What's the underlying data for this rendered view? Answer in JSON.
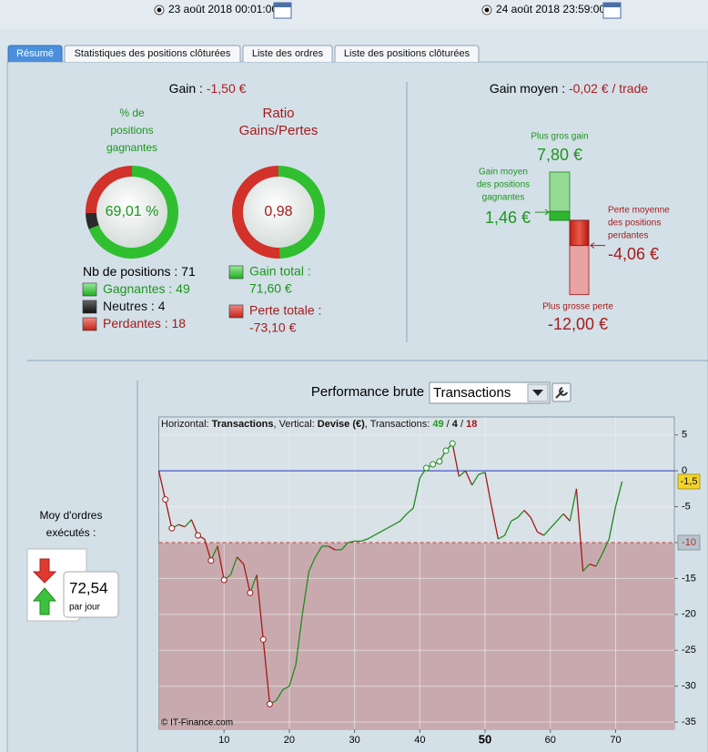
{
  "date_range": {
    "start": "23 août 2018 00:01:00",
    "end": "24 août 2018 23:59:00"
  },
  "tabs": [
    "Résumé",
    "Statistiques des positions clôturées",
    "Liste des ordres",
    "Liste des positions clôturées"
  ],
  "summary": {
    "gain_label": "Gain : ",
    "gain": {
      "value": -1.5,
      "label": "-1,50 €"
    },
    "win_rate": {
      "title": [
        "% de",
        "positions",
        "gagnantes"
      ],
      "value": 69.01,
      "label": "69,01 %"
    },
    "ratio": {
      "title": [
        "Ratio",
        "Gains/Pertes"
      ],
      "value": 0.98,
      "label": "0,98"
    },
    "positions": {
      "label": "Nb de positions : ",
      "value": 71
    },
    "gagnantes": {
      "label": "Gagnantes : ",
      "value": 49
    },
    "neutres": {
      "label": "Neutres : ",
      "value": 4
    },
    "perdantes": {
      "label": "Perdantes : ",
      "value": 18
    },
    "gain_total": {
      "label": "Gain total :",
      "value": 71.6,
      "value_label": "71,60 €"
    },
    "perte_totale": {
      "label": "Perte totale :",
      "value": -73.1,
      "value_label": "-73,10 €"
    }
  },
  "average": {
    "label": "Gain moyen : ",
    "value": {
      "value": -0.02,
      "label": "-0,02 € / trade"
    },
    "max_gain": {
      "title": "Plus gros gain",
      "value": 7.8,
      "label": "7,80 €"
    },
    "avg_gain": {
      "title": [
        "Gain moyen",
        "des positions",
        "gagnantes"
      ],
      "value": 1.46,
      "label": "1,46 €"
    },
    "avg_loss": {
      "title": [
        "Perte moyenne",
        "des positions",
        "perdantes"
      ],
      "value": -4.06,
      "label": "-4,06 €"
    },
    "max_loss": {
      "title": "Plus grosse perte",
      "value": -12,
      "label": "-12,00 €"
    }
  },
  "orders": {
    "title": [
      "Moy d'ordres",
      "exécutés :"
    ],
    "value": "72,54",
    "unit": "par jour"
  },
  "chart_data": {
    "type": "line",
    "title": "Performance brute",
    "selector": "Transactions",
    "header": [
      {
        "text": "Horizontal: "
      },
      {
        "text": "Transactions",
        "bold": true
      },
      {
        "text": ", Vertical: "
      },
      {
        "text": "Devise (€)",
        "bold": true
      },
      {
        "text": ", Transactions: "
      },
      {
        "text": "49",
        "bold": true,
        "color": "#1d9a1d"
      },
      {
        "text": " / "
      },
      {
        "text": "4",
        "bold": true
      },
      {
        "text": " / "
      },
      {
        "text": "18",
        "bold": true,
        "color": "#a51515"
      }
    ],
    "x": [
      0,
      1,
      2,
      3,
      4,
      5,
      6,
      7,
      8,
      9,
      10,
      11,
      12,
      13,
      14,
      15,
      16,
      17,
      18,
      19,
      20,
      21,
      22,
      23,
      24,
      25,
      26,
      27,
      28,
      29,
      30,
      31,
      32,
      33,
      34,
      35,
      36,
      37,
      38,
      39,
      40,
      41,
      42,
      43,
      44,
      45,
      46,
      47,
      48,
      49,
      50,
      51,
      52,
      53,
      54,
      55,
      56,
      57,
      58,
      59,
      60,
      61,
      62,
      63,
      64,
      65,
      66,
      67,
      68,
      69,
      70,
      71
    ],
    "values": [
      0,
      -4,
      -8,
      -7.5,
      -7.8,
      -6.8,
      -9,
      -9.5,
      -12.5,
      -10.5,
      -15.2,
      -14.5,
      -12,
      -13,
      -17,
      -14.5,
      -23.5,
      -32.5,
      -32,
      -30.5,
      -30,
      -27,
      -20,
      -14,
      -12,
      -10.5,
      -10.5,
      -11,
      -11,
      -10,
      -9.8,
      -9.8,
      -9.5,
      -9,
      -8.5,
      -8,
      -7.5,
      -7,
      -6,
      -5.2,
      -1,
      0.4,
      0.9,
      1.3,
      2.8,
      3.8,
      -0.8,
      0,
      -2,
      -0.5,
      -0.2,
      -5,
      -9.5,
      -9,
      -7,
      -6.5,
      -5.5,
      -6.5,
      -8.5,
      -9,
      -8,
      -7,
      -6,
      -7,
      -2.5,
      -14,
      -13,
      -13.3,
      -11.5,
      -9.5,
      -5,
      -1.5
    ],
    "marker_indices": [
      1,
      2,
      6,
      8,
      10,
      14,
      16,
      17,
      41,
      42,
      43,
      44,
      45
    ],
    "rise_color": "#1e8c1e",
    "fall_color": "#a31818",
    "xlim": [
      0,
      79
    ],
    "xticks": [
      10,
      20,
      30,
      40,
      50,
      60,
      70
    ],
    "bold_xtick": 50,
    "ylim": [
      -36,
      7.5
    ],
    "yticks": [
      5,
      0,
      -5,
      -10,
      -15,
      -20,
      -25,
      -30,
      -35
    ],
    "current_value": {
      "value": -1.5,
      "label": "-1,5"
    },
    "threshold": {
      "value": -10,
      "label": "-10"
    },
    "grid": true,
    "credit": "© IT-Finance.com"
  }
}
